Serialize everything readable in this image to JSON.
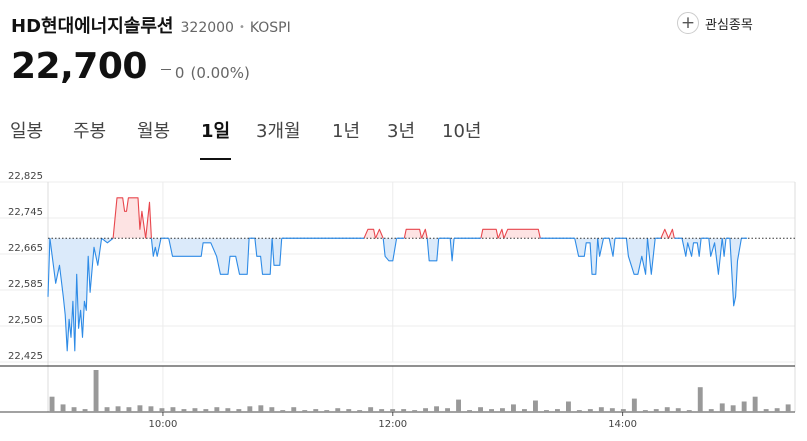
{
  "header": {
    "stock_name": "HD현대에너지솔루션",
    "stock_code": "322000",
    "separator": "•",
    "market": "KOSPI",
    "favorite_label": "관심종목",
    "favorite_icon": "plus-icon"
  },
  "quote": {
    "price": "22,700",
    "change": "0",
    "rate": "(0.00%)",
    "change_icon": "flat-dash-icon"
  },
  "tabs": [
    {
      "label": "일봉",
      "active": false
    },
    {
      "label": "주봉",
      "active": false
    },
    {
      "label": "월봉",
      "active": false
    },
    {
      "label": "1일",
      "active": true
    },
    {
      "label": "3개월",
      "active": false
    },
    {
      "label": "1년",
      "active": false
    },
    {
      "label": "3년",
      "active": false
    },
    {
      "label": "10년",
      "active": false
    }
  ],
  "colors": {
    "up": "#e8474d",
    "up_fill": "#fde3e3",
    "down": "#2e8be6",
    "down_fill": "#dbeafa",
    "volume": "#999999",
    "baseline": "#333333"
  },
  "chart_data": {
    "type": "line",
    "baseline": 22700,
    "ylim": [
      22425,
      22825
    ],
    "y_ticks": [
      "22,825",
      "22,745",
      "22,665",
      "22,585",
      "22,505",
      "22,425"
    ],
    "x_range": [
      "09:00",
      "15:30"
    ],
    "x_ticks": [
      "10:00",
      "12:00",
      "14:00"
    ],
    "grid": true,
    "price_points": [
      [
        "09:00",
        22570
      ],
      [
        "09:01",
        22700
      ],
      [
        "09:04",
        22600
      ],
      [
        "09:06",
        22640
      ],
      [
        "09:08",
        22570
      ],
      [
        "09:09",
        22530
      ],
      [
        "09:10",
        22450
      ],
      [
        "09:11",
        22520
      ],
      [
        "09:12",
        22480
      ],
      [
        "09:13",
        22560
      ],
      [
        "09:14",
        22450
      ],
      [
        "09:15",
        22620
      ],
      [
        "09:16",
        22500
      ],
      [
        "09:17",
        22540
      ],
      [
        "09:18",
        22480
      ],
      [
        "09:19",
        22560
      ],
      [
        "09:20",
        22540
      ],
      [
        "09:21",
        22660
      ],
      [
        "09:22",
        22580
      ],
      [
        "09:24",
        22680
      ],
      [
        "09:26",
        22640
      ],
      [
        "09:28",
        22700
      ],
      [
        "09:31",
        22690
      ],
      [
        "09:34",
        22700
      ],
      [
        "09:36",
        22790
      ],
      [
        "09:39",
        22790
      ],
      [
        "09:40",
        22760
      ],
      [
        "09:41",
        22760
      ],
      [
        "09:42",
        22790
      ],
      [
        "09:47",
        22790
      ],
      [
        "09:48",
        22720
      ],
      [
        "09:49",
        22760
      ],
      [
        "09:51",
        22700
      ],
      [
        "09:53",
        22780
      ],
      [
        "09:54",
        22700
      ],
      [
        "09:55",
        22660
      ],
      [
        "09:56",
        22680
      ],
      [
        "09:57",
        22660
      ],
      [
        "09:59",
        22700
      ],
      [
        "10:03",
        22700
      ],
      [
        "10:05",
        22660
      ],
      [
        "10:20",
        22660
      ],
      [
        "10:21",
        22690
      ],
      [
        "10:25",
        22690
      ],
      [
        "10:28",
        22660
      ],
      [
        "10:30",
        22620
      ],
      [
        "10:34",
        22620
      ],
      [
        "10:35",
        22660
      ],
      [
        "10:38",
        22660
      ],
      [
        "10:40",
        22620
      ],
      [
        "10:44",
        22620
      ],
      [
        "10:45",
        22700
      ],
      [
        "10:48",
        22700
      ],
      [
        "10:49",
        22660
      ],
      [
        "10:51",
        22660
      ],
      [
        "10:52",
        22620
      ],
      [
        "10:56",
        22620
      ],
      [
        "10:57",
        22700
      ],
      [
        "10:58",
        22640
      ],
      [
        "11:01",
        22640
      ],
      [
        "11:02",
        22700
      ],
      [
        "11:45",
        22700
      ],
      [
        "11:47",
        22720
      ],
      [
        "11:50",
        22720
      ],
      [
        "11:51",
        22700
      ],
      [
        "11:53",
        22720
      ],
      [
        "11:55",
        22700
      ],
      [
        "11:56",
        22660
      ],
      [
        "11:58",
        22650
      ],
      [
        "12:00",
        22650
      ],
      [
        "12:02",
        22700
      ],
      [
        "12:06",
        22700
      ],
      [
        "12:07",
        22720
      ],
      [
        "12:14",
        22720
      ],
      [
        "12:15",
        22700
      ],
      [
        "12:17",
        22720
      ],
      [
        "12:18",
        22700
      ],
      [
        "12:19",
        22650
      ],
      [
        "12:23",
        22650
      ],
      [
        "12:24",
        22700
      ],
      [
        "12:30",
        22700
      ],
      [
        "12:31",
        22650
      ],
      [
        "12:32",
        22700
      ],
      [
        "12:46",
        22700
      ],
      [
        "12:47",
        22720
      ],
      [
        "12:54",
        22720
      ],
      [
        "12:55",
        22700
      ],
      [
        "12:57",
        22720
      ],
      [
        "12:58",
        22700
      ],
      [
        "13:00",
        22720
      ],
      [
        "13:16",
        22720
      ],
      [
        "13:17",
        22700
      ],
      [
        "13:35",
        22700
      ],
      [
        "13:37",
        22660
      ],
      [
        "13:40",
        22660
      ],
      [
        "13:41",
        22690
      ],
      [
        "13:43",
        22690
      ],
      [
        "13:44",
        22620
      ],
      [
        "13:46",
        22620
      ],
      [
        "13:47",
        22700
      ],
      [
        "13:48",
        22660
      ],
      [
        "13:50",
        22700
      ],
      [
        "13:53",
        22700
      ],
      [
        "13:55",
        22660
      ],
      [
        "13:56",
        22700
      ],
      [
        "14:02",
        22700
      ],
      [
        "14:03",
        22660
      ],
      [
        "14:06",
        22620
      ],
      [
        "14:08",
        22620
      ],
      [
        "14:10",
        22660
      ],
      [
        "14:12",
        22620
      ],
      [
        "14:13",
        22700
      ],
      [
        "14:15",
        22620
      ],
      [
        "14:17",
        22700
      ],
      [
        "14:20",
        22700
      ],
      [
        "14:22",
        22720
      ],
      [
        "14:24",
        22700
      ],
      [
        "14:26",
        22720
      ],
      [
        "14:27",
        22700
      ],
      [
        "14:31",
        22700
      ],
      [
        "14:33",
        22660
      ],
      [
        "14:34",
        22690
      ],
      [
        "14:36",
        22660
      ],
      [
        "14:37",
        22690
      ],
      [
        "14:39",
        22690
      ],
      [
        "14:40",
        22660
      ],
      [
        "14:41",
        22700
      ],
      [
        "14:45",
        22700
      ],
      [
        "14:46",
        22660
      ],
      [
        "14:48",
        22690
      ],
      [
        "14:50",
        22620
      ],
      [
        "14:52",
        22700
      ],
      [
        "14:53",
        22660
      ],
      [
        "14:54",
        22700
      ],
      [
        "14:56",
        22700
      ],
      [
        "14:58",
        22550
      ],
      [
        "14:59",
        22570
      ],
      [
        "15:00",
        22650
      ],
      [
        "15:02",
        22700
      ],
      [
        "15:05",
        22700
      ]
    ],
    "volume_values": [
      16,
      8,
      5,
      3,
      44,
      5,
      6,
      5,
      7,
      6,
      4,
      5,
      3,
      4,
      3,
      5,
      4,
      3,
      6,
      7,
      5,
      2,
      5,
      2,
      3,
      2,
      4,
      3,
      2,
      5,
      3,
      3,
      3,
      2,
      4,
      6,
      4,
      13,
      2,
      5,
      3,
      4,
      8,
      3,
      12,
      2,
      3,
      11,
      2,
      3,
      5,
      4,
      3,
      14,
      2,
      3,
      5,
      4,
      2,
      26,
      3,
      9,
      7,
      11,
      16,
      3,
      4,
      8
    ]
  }
}
